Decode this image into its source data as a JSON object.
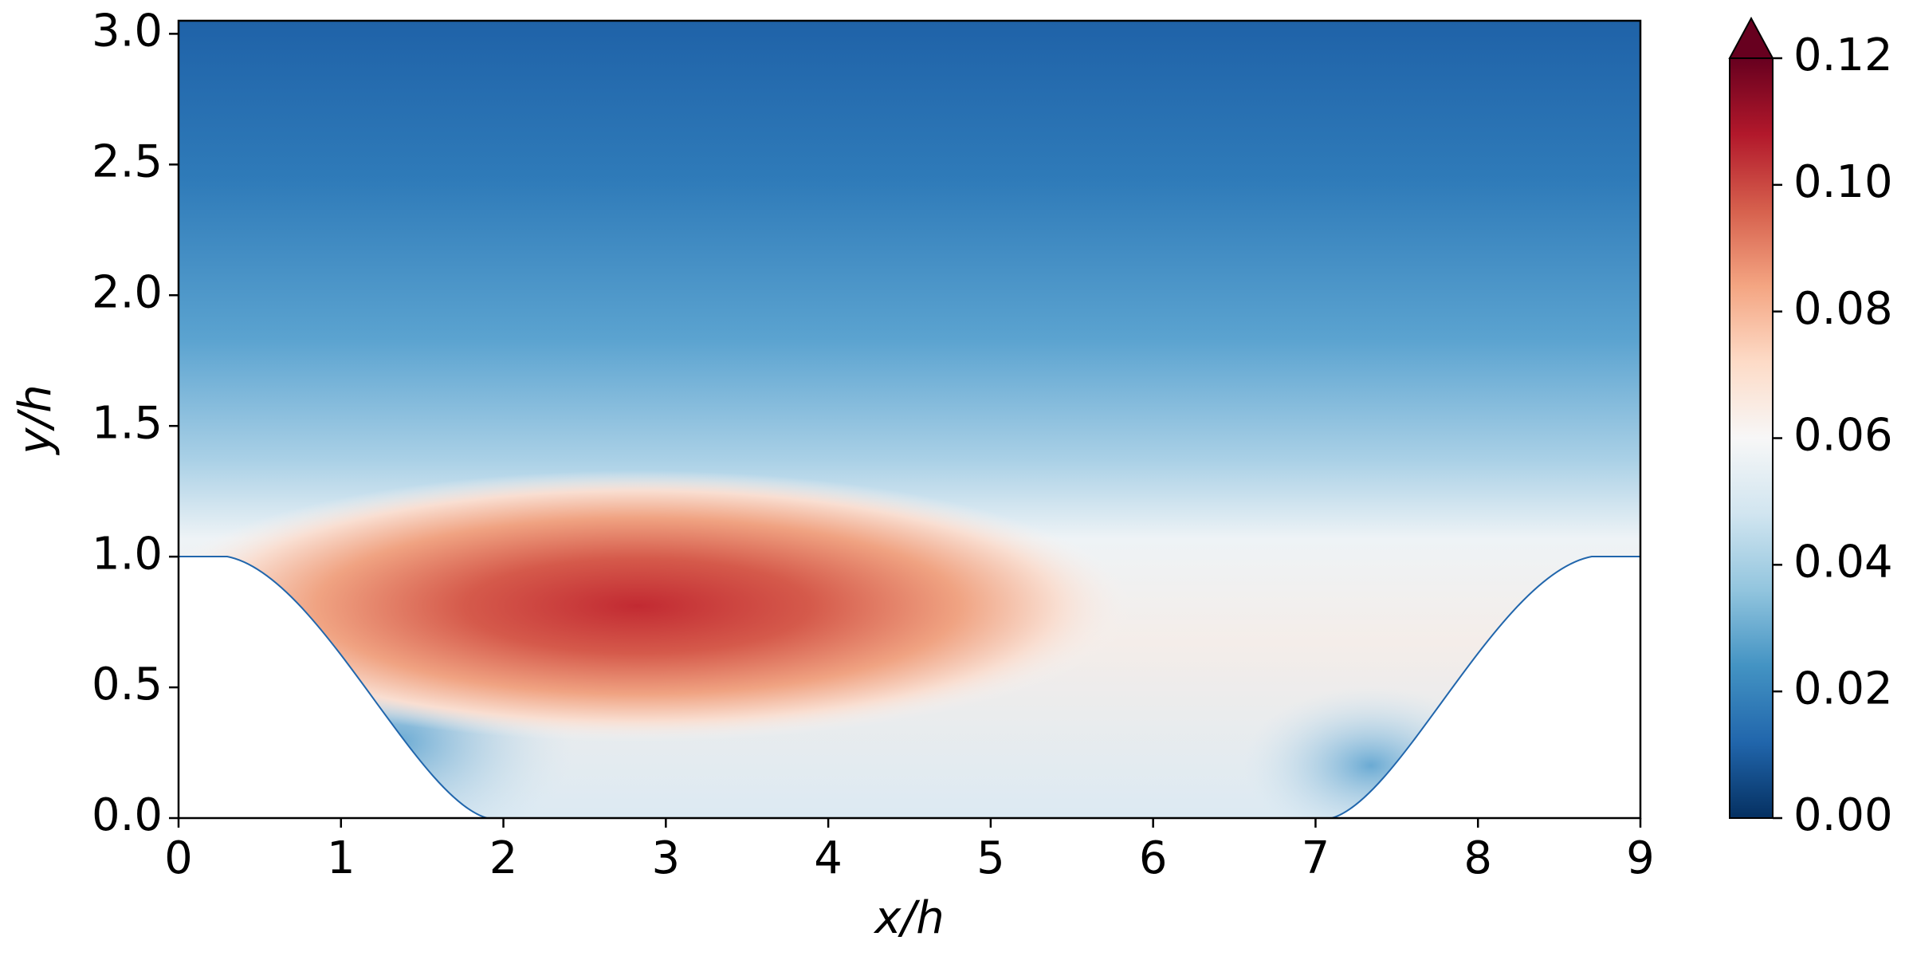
{
  "chart_data": {
    "type": "contour",
    "xlabel": "x/h",
    "ylabel": "y/h",
    "xlim": [
      0,
      9
    ],
    "xticks": [
      0,
      1,
      2,
      3,
      4,
      5,
      6,
      7,
      8,
      9
    ],
    "ylim": [
      0,
      3.05
    ],
    "yticks": [
      {
        "value": 0,
        "label": "0.0"
      },
      0.5,
      {
        "value": 1,
        "label": "1.0"
      },
      1.5,
      {
        "value": 2,
        "label": "2.0"
      },
      2.5,
      {
        "value": 3,
        "label": "3.0"
      }
    ],
    "colorbar": {
      "lim": [
        0,
        0.12
      ],
      "ticks": [
        {
          "value": 0,
          "label": "0.00"
        },
        0.02,
        0.04,
        0.06,
        0.08,
        {
          "value": 0.1,
          "label": "0.10"
        },
        0.12
      ],
      "colormap": [
        "#053061",
        "#2166ac",
        "#4393c3",
        "#92c5de",
        "#d1e5f0",
        "#f7f7f7",
        "#fddbc7",
        "#f4a582",
        "#d6604d",
        "#b2182b",
        "#67001f"
      ],
      "extend": "max",
      "extend_color": "#67001f"
    }
  }
}
